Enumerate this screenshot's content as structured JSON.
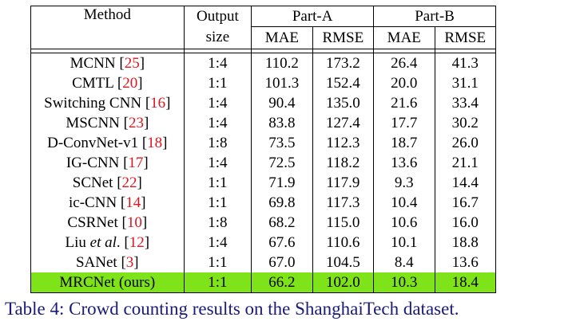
{
  "table": {
    "headers": {
      "method": "Method",
      "output_size_line1": "Output",
      "output_size_line2": "size",
      "part_a": "Part-A",
      "part_b": "Part-B",
      "mae": "MAE",
      "rmse": "RMSE"
    },
    "rows": [
      {
        "name": "MCNN",
        "ref": "25",
        "output": "1:4",
        "a_mae": "110.2",
        "a_rmse": "173.2",
        "b_mae": "26.4",
        "b_rmse": "41.3"
      },
      {
        "name": "CMTL",
        "ref": "20",
        "output": "1:1",
        "a_mae": "101.3",
        "a_rmse": "152.4",
        "b_mae": "20.0",
        "b_rmse": "31.1"
      },
      {
        "name": "Switching CNN",
        "ref": "16",
        "output": "1:4",
        "a_mae": "90.4",
        "a_rmse": "135.0",
        "b_mae": "21.6",
        "b_rmse": "33.4"
      },
      {
        "name": "MSCNN",
        "ref": "23",
        "output": "1:4",
        "a_mae": "83.8",
        "a_rmse": "127.4",
        "b_mae": "17.7",
        "b_rmse": "30.2"
      },
      {
        "name": "D-ConvNet-v1",
        "ref": "18",
        "output": "1:8",
        "a_mae": "73.5",
        "a_rmse": "112.3",
        "b_mae": "18.7",
        "b_rmse": "26.0"
      },
      {
        "name": "IG-CNN",
        "ref": "17",
        "output": "1:4",
        "a_mae": "72.5",
        "a_rmse": "118.2",
        "b_mae": "13.6",
        "b_rmse": "21.1"
      },
      {
        "name": "SCNet",
        "ref": "22",
        "output": "1:1",
        "a_mae": "71.9",
        "a_rmse": "117.9",
        "b_mae": "9.3",
        "b_rmse": "14.4"
      },
      {
        "name": "ic-CNN",
        "ref": "14",
        "output": "1:1",
        "a_mae": "69.8",
        "a_rmse": "117.3",
        "b_mae": "10.4",
        "b_rmse": "16.7"
      },
      {
        "name": "CSRNet",
        "ref": "10",
        "output": "1:8",
        "a_mae": "68.2",
        "a_rmse": "115.0",
        "b_mae": "10.6",
        "b_rmse": "16.0"
      },
      {
        "name_pre": "Liu ",
        "name_it": "et al",
        "name_post": ".",
        "ref": "12",
        "output": "1:4",
        "a_mae": "67.6",
        "a_rmse": "110.6",
        "b_mae": "10.1",
        "b_rmse": "18.8"
      },
      {
        "name": "SANet",
        "ref": "3",
        "output": "1:1",
        "a_mae": "67.0",
        "a_rmse": "104.5",
        "b_mae": "8.4",
        "b_rmse": "13.6"
      },
      {
        "name": "MRCNet (ours)",
        "output": "1:1",
        "a_mae": "66.2",
        "a_rmse": "102.0",
        "b_mae": "10.3",
        "b_rmse": "18.4"
      }
    ],
    "highlight_color": "#7fe31a",
    "ref_color": "#e0141e"
  },
  "caption": "Table 4: Crowd counting results on the ShanghaiTech dataset."
}
